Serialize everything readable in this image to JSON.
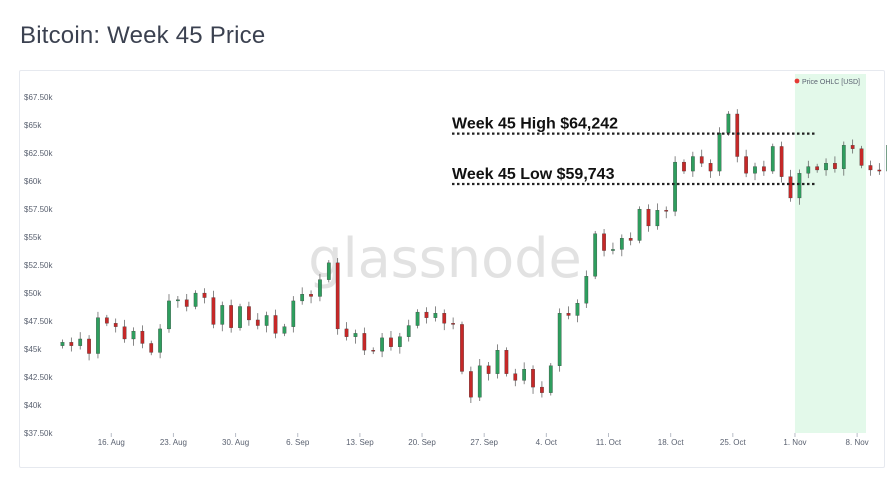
{
  "page": {
    "title": "Bitcoin: Week 45 Price",
    "watermark": "glassnode"
  },
  "colors": {
    "up": "#2e9e5e",
    "down": "#c62828",
    "highlight": "#e3f9ea",
    "legend_dot": "#e53935",
    "line": "#222222"
  },
  "chart_data": {
    "type": "candlestick",
    "title": "Bitcoin: Week 45 Price",
    "legend": {
      "label": "Price OHLC [USD]",
      "placement": "top-right"
    },
    "ylim": [
      37500,
      68500
    ],
    "yticks": [
      37500,
      40000,
      42500,
      45000,
      47500,
      50000,
      52500,
      55000,
      57500,
      60000,
      62500,
      65000,
      67500
    ],
    "ytick_labels": [
      "$37.50k",
      "$40k",
      "$42.50k",
      "$45k",
      "$47.50k",
      "$50k",
      "$52.50k",
      "$55k",
      "$57.50k",
      "$60k",
      "$62.50k",
      "$65k",
      "$67.50k"
    ],
    "xlim": [
      "2021-08-10",
      "2021-11-09"
    ],
    "xticks": [
      "2021-08-16",
      "2021-08-23",
      "2021-08-30",
      "2021-09-06",
      "2021-09-13",
      "2021-09-20",
      "2021-09-27",
      "2021-10-04",
      "2021-10-11",
      "2021-10-18",
      "2021-10-25",
      "2021-11-01",
      "2021-11-08"
    ],
    "xtick_labels": [
      "16. Aug",
      "23. Aug",
      "30. Aug",
      "6. Sep",
      "13. Sep",
      "20. Sep",
      "27. Sep",
      "4. Oct",
      "11. Oct",
      "18. Oct",
      "25. Oct",
      "1. Nov",
      "8. Nov"
    ],
    "highlight_range": [
      "2021-11-01",
      "2021-11-09"
    ],
    "annotations": [
      {
        "label": "Week 45 High $64,242",
        "value": 64242
      },
      {
        "label": "Week 45 Low $59,743",
        "value": 59743
      }
    ],
    "closes": [
      45600,
      45300,
      45900,
      44600,
      47800,
      47300,
      47000,
      45900,
      46600,
      45500,
      44700,
      46800,
      49300,
      49400,
      48800,
      50000,
      49600,
      47200,
      48900,
      46900,
      48800,
      47600,
      47100,
      48000,
      46400,
      47000,
      49300,
      49900,
      49700,
      51200,
      52700,
      46800,
      46100,
      46400,
      44900,
      44800,
      46000,
      45200,
      46100,
      47100,
      48300,
      47800,
      48200,
      47300,
      47200,
      43000,
      40700,
      43500,
      42800,
      44900,
      42800,
      42200,
      43200,
      41600,
      41100,
      43500,
      48200,
      48000,
      49100,
      51500,
      55300,
      53800,
      53900,
      54900,
      54700,
      57500,
      56000,
      57400,
      57300,
      61700,
      60900,
      62200,
      61600,
      60900,
      64300,
      66000,
      62200,
      60700,
      61300,
      60900,
      63100,
      60400,
      58500,
      60700,
      61300,
      61000,
      61600,
      61100,
      63200,
      62900,
      61400,
      61000,
      60900,
      63200
    ]
  }
}
